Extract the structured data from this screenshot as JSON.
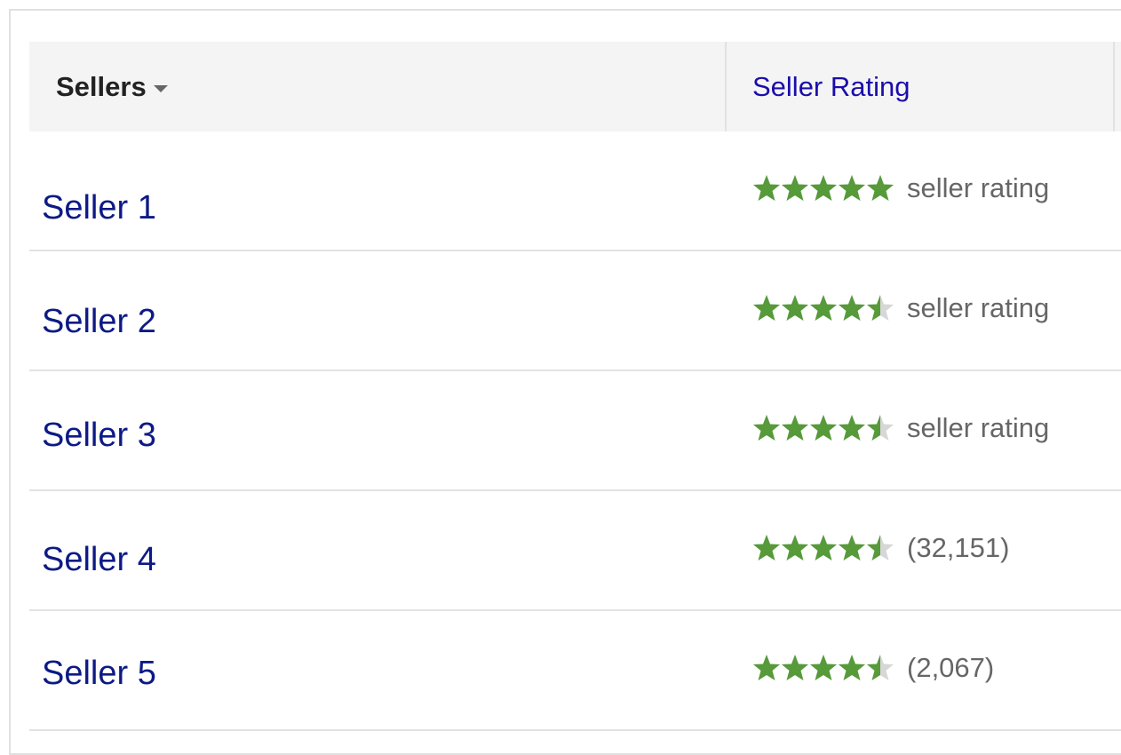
{
  "header": {
    "sellers_label": "Sellers",
    "rating_label": "Seller Rating"
  },
  "colors": {
    "star": "#569a3a",
    "link": "#0d1a85",
    "header_link": "#1a0dab"
  },
  "rows": [
    {
      "name": "Seller 1",
      "rating": 5,
      "label": "seller rating"
    },
    {
      "name": "Seller 2",
      "rating": 4.5,
      "label": "seller rating"
    },
    {
      "name": "Seller 3",
      "rating": 4.5,
      "label": "seller rating"
    },
    {
      "name": "Seller 4",
      "rating": 4.5,
      "label": "(32,151)"
    },
    {
      "name": "Seller 5",
      "rating": 4.5,
      "label": "(2,067)"
    }
  ]
}
